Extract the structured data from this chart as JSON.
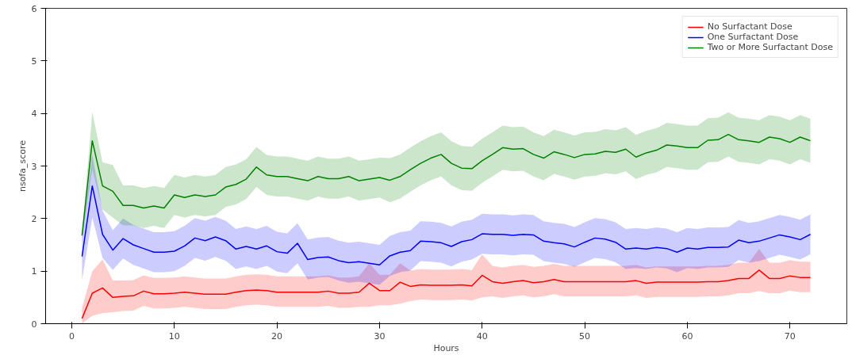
{
  "chart_data": {
    "type": "line",
    "xlabel": "Hours",
    "ylabel": "nsofa_score",
    "x": [
      1,
      2,
      3,
      4,
      5,
      6,
      7,
      8,
      9,
      10,
      11,
      12,
      13,
      14,
      15,
      16,
      17,
      18,
      19,
      20,
      21,
      22,
      23,
      24,
      25,
      26,
      27,
      28,
      29,
      30,
      31,
      32,
      33,
      34,
      35,
      36,
      37,
      38,
      39,
      40,
      41,
      42,
      43,
      44,
      45,
      46,
      47,
      48,
      49,
      50,
      51,
      52,
      53,
      54,
      55,
      56,
      57,
      58,
      59,
      60,
      61,
      62,
      63,
      64,
      65,
      66,
      67,
      68,
      69,
      70,
      71,
      72
    ],
    "xlim": [
      -2.55,
      75.55
    ],
    "ylim": [
      0,
      6
    ],
    "xticks": [
      0,
      10,
      20,
      30,
      40,
      50,
      60,
      70
    ],
    "yticks": [
      0,
      1,
      2,
      3,
      4,
      5,
      6
    ],
    "grid": false,
    "legend": "top right",
    "line_style": "solid",
    "marker": "none",
    "series": [
      {
        "name": "No Surfactant Dose",
        "color": "#ff0000",
        "values": [
          0.1,
          0.58,
          0.68,
          0.5,
          0.52,
          0.53,
          0.62,
          0.57,
          0.57,
          0.58,
          0.6,
          0.58,
          0.56,
          0.56,
          0.56,
          0.6,
          0.63,
          0.64,
          0.63,
          0.6,
          0.6,
          0.6,
          0.6,
          0.6,
          0.62,
          0.58,
          0.58,
          0.6,
          0.77,
          0.63,
          0.63,
          0.79,
          0.71,
          0.74,
          0.73,
          0.73,
          0.73,
          0.74,
          0.72,
          0.92,
          0.8,
          0.77,
          0.8,
          0.82,
          0.78,
          0.8,
          0.84,
          0.8,
          0.8,
          0.8,
          0.8,
          0.8,
          0.8,
          0.8,
          0.82,
          0.77,
          0.79,
          0.79,
          0.79,
          0.79,
          0.79,
          0.8,
          0.8,
          0.82,
          0.86,
          0.86,
          1.02,
          0.86,
          0.86,
          0.91,
          0.88,
          0.88
        ],
        "upper": [
          0.3,
          1.0,
          1.22,
          0.82,
          0.82,
          0.83,
          0.92,
          0.87,
          0.87,
          0.88,
          0.9,
          0.88,
          0.86,
          0.86,
          0.86,
          0.9,
          0.93,
          0.94,
          0.93,
          0.9,
          0.9,
          0.9,
          0.9,
          0.9,
          0.92,
          0.88,
          0.88,
          0.9,
          1.15,
          0.93,
          0.93,
          1.15,
          1.01,
          1.04,
          1.03,
          1.03,
          1.03,
          1.04,
          1.02,
          1.32,
          1.1,
          1.07,
          1.1,
          1.12,
          1.08,
          1.1,
          1.14,
          1.1,
          1.1,
          1.1,
          1.1,
          1.1,
          1.1,
          1.1,
          1.12,
          1.07,
          1.09,
          1.09,
          1.09,
          1.09,
          1.09,
          1.1,
          1.1,
          1.12,
          1.16,
          1.16,
          1.42,
          1.16,
          1.16,
          1.21,
          1.18,
          1.18
        ],
        "lower": [
          0.0,
          0.15,
          0.2,
          0.22,
          0.24,
          0.25,
          0.34,
          0.29,
          0.29,
          0.3,
          0.32,
          0.3,
          0.28,
          0.28,
          0.28,
          0.32,
          0.35,
          0.36,
          0.35,
          0.32,
          0.32,
          0.32,
          0.32,
          0.32,
          0.34,
          0.3,
          0.3,
          0.32,
          0.32,
          0.35,
          0.35,
          0.38,
          0.43,
          0.46,
          0.45,
          0.45,
          0.45,
          0.46,
          0.44,
          0.5,
          0.52,
          0.49,
          0.52,
          0.54,
          0.5,
          0.52,
          0.56,
          0.52,
          0.52,
          0.52,
          0.52,
          0.52,
          0.52,
          0.52,
          0.54,
          0.49,
          0.51,
          0.51,
          0.51,
          0.51,
          0.51,
          0.52,
          0.52,
          0.54,
          0.58,
          0.58,
          0.62,
          0.58,
          0.58,
          0.63,
          0.6,
          0.6
        ]
      },
      {
        "name": "One Surfactant Dose",
        "color": "#0000ff",
        "values": [
          1.28,
          2.62,
          1.7,
          1.4,
          1.62,
          1.5,
          1.43,
          1.36,
          1.36,
          1.38,
          1.48,
          1.63,
          1.58,
          1.65,
          1.58,
          1.42,
          1.47,
          1.42,
          1.48,
          1.37,
          1.34,
          1.53,
          1.22,
          1.26,
          1.27,
          1.2,
          1.16,
          1.18,
          1.15,
          1.12,
          1.29,
          1.36,
          1.39,
          1.57,
          1.56,
          1.54,
          1.47,
          1.56,
          1.6,
          1.71,
          1.7,
          1.7,
          1.68,
          1.7,
          1.69,
          1.57,
          1.54,
          1.52,
          1.46,
          1.55,
          1.63,
          1.61,
          1.55,
          1.42,
          1.44,
          1.42,
          1.45,
          1.43,
          1.36,
          1.44,
          1.42,
          1.45,
          1.45,
          1.46,
          1.59,
          1.54,
          1.57,
          1.63,
          1.69,
          1.65,
          1.6,
          1.7
        ],
        "upper": [
          1.73,
          3.22,
          2.15,
          1.78,
          2.0,
          1.88,
          1.81,
          1.74,
          1.74,
          1.76,
          1.86,
          2.01,
          1.96,
          2.03,
          1.96,
          1.8,
          1.85,
          1.8,
          1.86,
          1.75,
          1.72,
          1.91,
          1.6,
          1.64,
          1.65,
          1.58,
          1.54,
          1.56,
          1.53,
          1.5,
          1.67,
          1.74,
          1.77,
          1.95,
          1.94,
          1.92,
          1.85,
          1.94,
          1.98,
          2.09,
          2.08,
          2.08,
          2.06,
          2.08,
          2.07,
          1.95,
          1.92,
          1.9,
          1.84,
          1.93,
          2.01,
          1.99,
          1.93,
          1.8,
          1.82,
          1.8,
          1.83,
          1.81,
          1.74,
          1.82,
          1.8,
          1.83,
          1.83,
          1.84,
          1.97,
          1.92,
          1.95,
          2.01,
          2.07,
          2.03,
          1.98,
          2.08
        ],
        "lower": [
          0.83,
          2.02,
          1.25,
          1.02,
          1.24,
          1.12,
          1.05,
          0.98,
          0.98,
          1.0,
          1.1,
          1.25,
          1.2,
          1.27,
          1.2,
          1.04,
          1.09,
          1.04,
          1.1,
          0.99,
          0.96,
          1.15,
          0.84,
          0.88,
          0.89,
          0.82,
          0.78,
          0.8,
          0.77,
          0.74,
          0.91,
          0.98,
          1.01,
          1.19,
          1.18,
          1.16,
          1.09,
          1.18,
          1.22,
          1.33,
          1.32,
          1.32,
          1.3,
          1.32,
          1.31,
          1.19,
          1.16,
          1.14,
          1.08,
          1.17,
          1.25,
          1.23,
          1.17,
          1.04,
          1.06,
          1.04,
          1.07,
          1.05,
          0.98,
          1.06,
          1.04,
          1.07,
          1.07,
          1.08,
          1.21,
          1.16,
          1.19,
          1.25,
          1.31,
          1.27,
          1.22,
          1.32
        ]
      },
      {
        "name": "Two or More Surfactant Dose",
        "color": "#008000",
        "values": [
          1.68,
          3.48,
          2.62,
          2.52,
          2.25,
          2.25,
          2.2,
          2.24,
          2.2,
          2.45,
          2.4,
          2.45,
          2.42,
          2.45,
          2.6,
          2.65,
          2.75,
          2.98,
          2.83,
          2.8,
          2.8,
          2.76,
          2.72,
          2.8,
          2.76,
          2.76,
          2.8,
          2.72,
          2.75,
          2.78,
          2.73,
          2.8,
          2.93,
          3.05,
          3.15,
          3.22,
          3.05,
          2.96,
          2.95,
          3.1,
          3.22,
          3.35,
          3.32,
          3.33,
          3.22,
          3.15,
          3.27,
          3.22,
          3.16,
          3.22,
          3.23,
          3.28,
          3.26,
          3.32,
          3.17,
          3.25,
          3.3,
          3.4,
          3.38,
          3.35,
          3.35,
          3.49,
          3.5,
          3.6,
          3.5,
          3.48,
          3.45,
          3.55,
          3.52,
          3.45,
          3.55,
          3.48
        ],
        "upper": [
          1.73,
          4.03,
          3.07,
          3.02,
          2.63,
          2.63,
          2.58,
          2.62,
          2.58,
          2.83,
          2.78,
          2.83,
          2.8,
          2.83,
          2.98,
          3.03,
          3.13,
          3.36,
          3.21,
          3.18,
          3.18,
          3.14,
          3.1,
          3.18,
          3.14,
          3.14,
          3.18,
          3.1,
          3.13,
          3.16,
          3.15,
          3.22,
          3.35,
          3.47,
          3.57,
          3.64,
          3.47,
          3.38,
          3.37,
          3.52,
          3.64,
          3.77,
          3.74,
          3.75,
          3.64,
          3.57,
          3.69,
          3.64,
          3.58,
          3.64,
          3.65,
          3.7,
          3.68,
          3.74,
          3.59,
          3.67,
          3.72,
          3.82,
          3.8,
          3.77,
          3.77,
          3.91,
          3.92,
          4.02,
          3.92,
          3.9,
          3.87,
          3.97,
          3.94,
          3.87,
          3.97,
          3.9
        ],
        "lower": [
          1.63,
          2.93,
          2.17,
          2.02,
          1.87,
          1.87,
          1.82,
          1.86,
          1.82,
          2.07,
          2.02,
          2.07,
          2.04,
          2.07,
          2.22,
          2.27,
          2.37,
          2.6,
          2.45,
          2.42,
          2.42,
          2.38,
          2.34,
          2.42,
          2.38,
          2.38,
          2.42,
          2.34,
          2.37,
          2.4,
          2.31,
          2.38,
          2.51,
          2.63,
          2.73,
          2.8,
          2.63,
          2.54,
          2.53,
          2.68,
          2.8,
          2.93,
          2.9,
          2.91,
          2.8,
          2.73,
          2.85,
          2.8,
          2.74,
          2.8,
          2.81,
          2.86,
          2.84,
          2.9,
          2.75,
          2.83,
          2.88,
          2.98,
          2.96,
          2.93,
          2.93,
          3.07,
          3.08,
          3.18,
          3.08,
          3.06,
          3.03,
          3.13,
          3.1,
          3.03,
          3.13,
          3.06
        ]
      }
    ]
  }
}
